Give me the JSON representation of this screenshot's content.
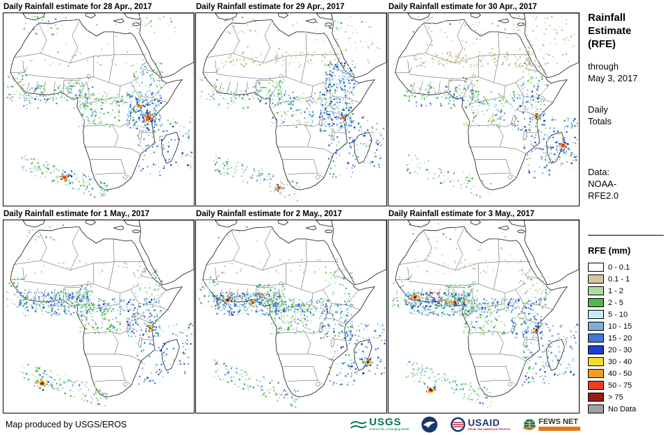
{
  "panels": [
    {
      "title": "Daily Rainfall estimate for 28 Apr., 2017"
    },
    {
      "title": "Daily Rainfall estimate for 29 Apr., 2017"
    },
    {
      "title": "Daily Rainfall estimate for 30 Apr., 2017"
    },
    {
      "title": "Daily Rainfall estimate for 1 May., 2017"
    },
    {
      "title": "Daily Rainfall estimate for 2 May., 2017"
    },
    {
      "title": "Daily Rainfall estimate for 3 May., 2017"
    }
  ],
  "sidebar": {
    "title": "Rainfall\nEstimate\n(RFE)",
    "through": "through\nMay 3, 2017",
    "daily_totals": "Daily\nTotals",
    "data_source": "Data:\nNOAA-\nRFE2.0",
    "legend_title": "RFE (mm)",
    "legend": [
      {
        "range": "0 - 0.1",
        "color": "#FFFFFF"
      },
      {
        "range": "0.1 - 1",
        "color": "#D6C6A0"
      },
      {
        "range": "1 - 2",
        "color": "#ABDDA0"
      },
      {
        "range": "2 - 5",
        "color": "#4FB84E"
      },
      {
        "range": "5 - 10",
        "color": "#C2EEF0"
      },
      {
        "range": "10 - 15",
        "color": "#7FAEDC"
      },
      {
        "range": "15 - 20",
        "color": "#3F7AD8"
      },
      {
        "range": "20 - 30",
        "color": "#1E3FC8"
      },
      {
        "range": "30 - 40",
        "color": "#F2DC2E"
      },
      {
        "range": "40 - 50",
        "color": "#F29D26"
      },
      {
        "range": "50 - 75",
        "color": "#EE3E20"
      },
      {
        "range": "> 75",
        "color": "#9E1A0F"
      },
      {
        "range": "No Data",
        "color": "#A0A0A0"
      }
    ]
  },
  "footer": {
    "credit": "Map produced by USGS/EROS",
    "logos": {
      "usgs": {
        "name": "USGS",
        "tagline": "science for a changing world"
      },
      "noaa": {
        "name": "NOAA"
      },
      "usaid": {
        "name": "USAID",
        "tagline": "FROM THE AMERICAN PEOPLE"
      },
      "fewsnet": {
        "name": "FEWS NET"
      }
    }
  }
}
